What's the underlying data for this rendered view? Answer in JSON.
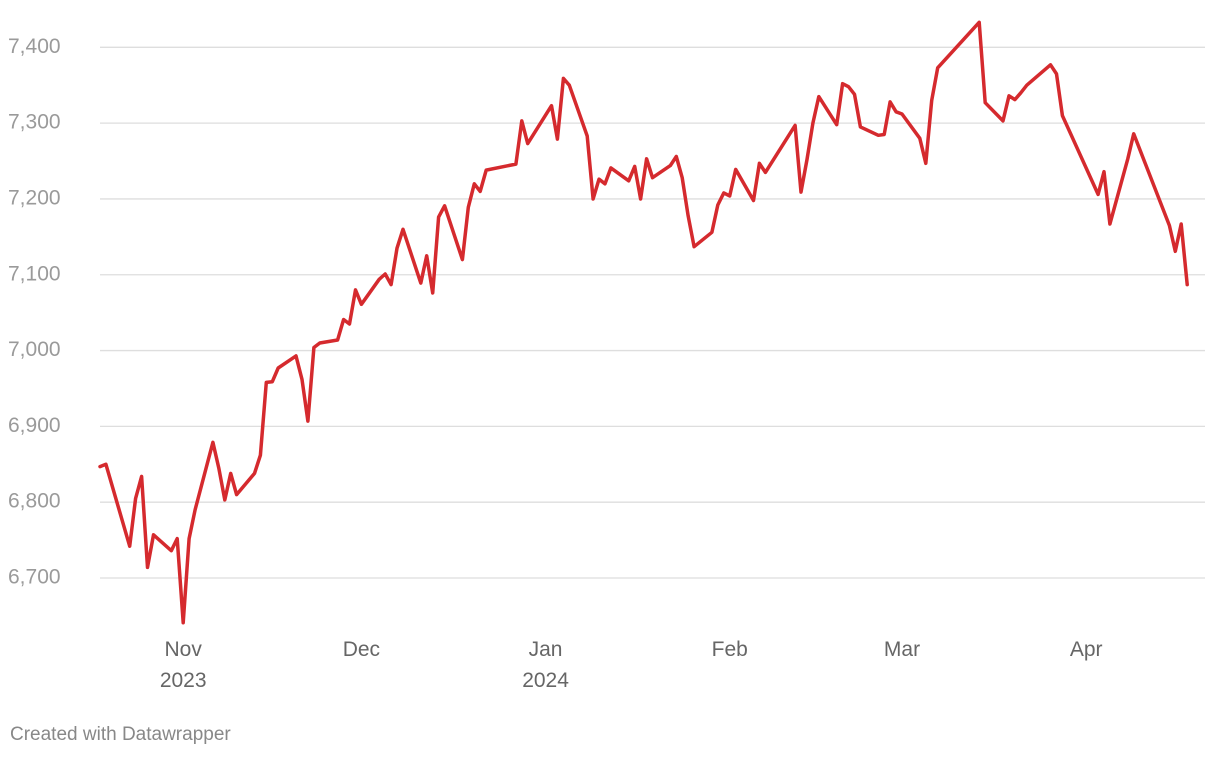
{
  "chart_data": {
    "type": "line",
    "x": [
      "2023-10-18",
      "2023-10-19",
      "2023-10-23",
      "2023-10-24",
      "2023-10-25",
      "2023-10-26",
      "2023-10-27",
      "2023-10-30",
      "2023-10-31",
      "2023-11-01",
      "2023-11-02",
      "2023-11-03",
      "2023-11-06",
      "2023-11-07",
      "2023-11-08",
      "2023-11-09",
      "2023-11-10",
      "2023-11-13",
      "2023-11-14",
      "2023-11-15",
      "2023-11-16",
      "2023-11-17",
      "2023-11-20",
      "2023-11-21",
      "2023-11-22",
      "2023-11-23",
      "2023-11-24",
      "2023-11-27",
      "2023-11-28",
      "2023-11-29",
      "2023-11-30",
      "2023-12-01",
      "2023-12-04",
      "2023-12-05",
      "2023-12-06",
      "2023-12-07",
      "2023-12-08",
      "2023-12-11",
      "2023-12-12",
      "2023-12-13",
      "2023-12-14",
      "2023-12-15",
      "2023-12-18",
      "2023-12-19",
      "2023-12-20",
      "2023-12-21",
      "2023-12-22",
      "2023-12-27",
      "2023-12-28",
      "2023-12-29",
      "2024-01-02",
      "2024-01-03",
      "2024-01-04",
      "2024-01-05",
      "2024-01-08",
      "2024-01-09",
      "2024-01-10",
      "2024-01-11",
      "2024-01-12",
      "2024-01-15",
      "2024-01-16",
      "2024-01-17",
      "2024-01-18",
      "2024-01-19",
      "2024-01-22",
      "2024-01-23",
      "2024-01-24",
      "2024-01-25",
      "2024-01-26",
      "2024-01-29",
      "2024-01-30",
      "2024-01-31",
      "2024-02-01",
      "2024-02-02",
      "2024-02-05",
      "2024-02-06",
      "2024-02-07",
      "2024-02-12",
      "2024-02-13",
      "2024-02-14",
      "2024-02-15",
      "2024-02-16",
      "2024-02-19",
      "2024-02-20",
      "2024-02-21",
      "2024-02-22",
      "2024-02-23",
      "2024-02-26",
      "2024-02-27",
      "2024-02-28",
      "2024-02-29",
      "2024-03-01",
      "2024-03-04",
      "2024-03-05",
      "2024-03-06",
      "2024-03-07",
      "2024-03-14",
      "2024-03-15",
      "2024-03-18",
      "2024-03-19",
      "2024-03-20",
      "2024-03-21",
      "2024-03-22",
      "2024-03-26",
      "2024-03-27",
      "2024-03-28",
      "2024-04-03",
      "2024-04-04",
      "2024-04-05",
      "2024-04-08",
      "2024-04-09",
      "2024-04-15",
      "2024-04-16",
      "2024-04-17",
      "2024-04-18"
    ],
    "series": [
      {
        "color": "#d52a2e",
        "values": [
          6847,
          6850,
          6742,
          6805,
          6834,
          6714,
          6757,
          6736,
          6752,
          6641,
          6752,
          6790,
          6879,
          6845,
          6803,
          6838,
          6810,
          6838,
          6862,
          6958,
          6959,
          6977,
          6993,
          6962,
          6907,
          7004,
          7010,
          7014,
          7041,
          7035,
          7080,
          7061,
          7094,
          7101,
          7087,
          7135,
          7160,
          7089,
          7125,
          7076,
          7176,
          7191,
          7120,
          7189,
          7220,
          7210,
          7238,
          7246,
          7303,
          7273,
          7323,
          7279,
          7359,
          7350,
          7283,
          7200,
          7226,
          7220,
          7241,
          7224,
          7243,
          7200,
          7253,
          7228,
          7244,
          7256,
          7228,
          7178,
          7137,
          7156,
          7192,
          7208,
          7204,
          7239,
          7198,
          7247,
          7235,
          7297,
          7209,
          7252,
          7300,
          7335,
          7298,
          7352,
          7348,
          7338,
          7295,
          7284,
          7285,
          7328,
          7315,
          7312,
          7280,
          7247,
          7330,
          7373,
          7433,
          7327,
          7303,
          7336,
          7331,
          7340,
          7350,
          7377,
          7365,
          7310,
          7206,
          7236,
          7167,
          7253,
          7286,
          7165,
          7131,
          7167,
          7087
        ]
      }
    ],
    "xlim": [
      "2023-10-18",
      "2024-04-21"
    ],
    "xticks": [
      {
        "value": "2023-11",
        "label": "Nov\n2023"
      },
      {
        "value": "2023-12",
        "label": "Dec"
      },
      {
        "value": "2024-01",
        "label": "Jan\n2024"
      },
      {
        "value": "2024-02",
        "label": "Feb"
      },
      {
        "value": "2024-03",
        "label": "Mar"
      },
      {
        "value": "2024-04",
        "label": "Apr"
      }
    ],
    "ylim": [
      6640,
      7440
    ],
    "yticks": [
      {
        "value": 6700,
        "label": "6,700"
      },
      {
        "value": 6800,
        "label": "6,800"
      },
      {
        "value": 6900,
        "label": "6,900"
      },
      {
        "value": 7000,
        "label": "7,000"
      },
      {
        "value": 7100,
        "label": "7,100"
      },
      {
        "value": 7200,
        "label": "7,200"
      },
      {
        "value": 7300,
        "label": "7,300"
      },
      {
        "value": 7400,
        "label": "7,400"
      }
    ],
    "grid": true,
    "footer": "Created with Datawrapper"
  }
}
